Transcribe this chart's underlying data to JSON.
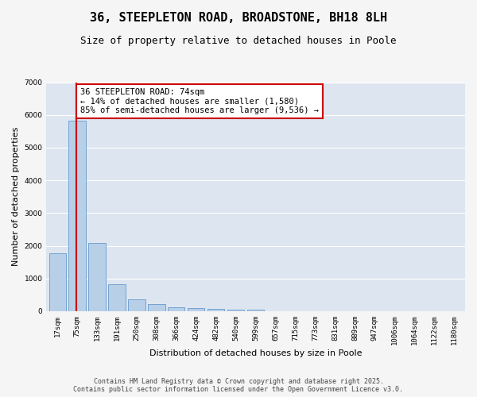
{
  "title": "36, STEEPLETON ROAD, BROADSTONE, BH18 8LH",
  "subtitle": "Size of property relative to detached houses in Poole",
  "xlabel": "Distribution of detached houses by size in Poole",
  "ylabel": "Number of detached properties",
  "categories": [
    "17sqm",
    "75sqm",
    "133sqm",
    "191sqm",
    "250sqm",
    "308sqm",
    "366sqm",
    "424sqm",
    "482sqm",
    "540sqm",
    "599sqm",
    "657sqm",
    "715sqm",
    "773sqm",
    "831sqm",
    "889sqm",
    "947sqm",
    "1006sqm",
    "1064sqm",
    "1122sqm",
    "1180sqm"
  ],
  "values": [
    1780,
    5820,
    2080,
    820,
    370,
    225,
    130,
    95,
    80,
    55,
    45,
    0,
    0,
    0,
    0,
    0,
    0,
    0,
    0,
    0,
    0
  ],
  "bar_color": "#b8cfe8",
  "bar_edge_color": "#6699cc",
  "vline_x_index": 0.95,
  "vline_color": "#cc0000",
  "annotation_text": "36 STEEPLETON ROAD: 74sqm\n← 14% of detached houses are smaller (1,580)\n85% of semi-detached houses are larger (9,536) →",
  "annotation_box_facecolor": "#ffffff",
  "annotation_box_edgecolor": "#cc0000",
  "ylim": [
    0,
    7000
  ],
  "yticks": [
    0,
    1000,
    2000,
    3000,
    4000,
    5000,
    6000,
    7000
  ],
  "plot_bg_color": "#dde6f0",
  "fig_bg_color": "#f5f5f5",
  "grid_color": "#ffffff",
  "footer_line1": "Contains HM Land Registry data © Crown copyright and database right 2025.",
  "footer_line2": "Contains public sector information licensed under the Open Government Licence v3.0.",
  "title_fontsize": 11,
  "subtitle_fontsize": 9,
  "axis_label_fontsize": 8,
  "tick_fontsize": 6.5,
  "annotation_fontsize": 7.5,
  "footer_fontsize": 6
}
